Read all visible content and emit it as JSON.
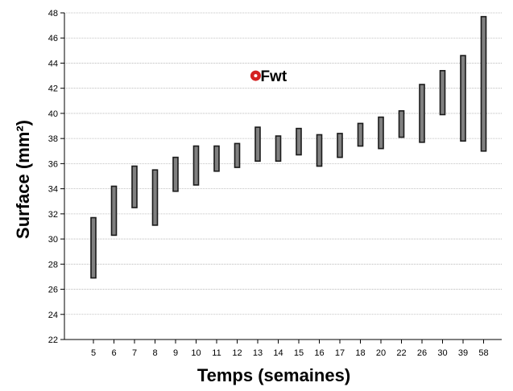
{
  "chart_data": {
    "type": "range-bar",
    "xlabel": "Temps (semaines)",
    "ylabel": "Surface (mm²)",
    "ylim": [
      22,
      48
    ],
    "yticks": [
      22,
      24,
      26,
      28,
      30,
      32,
      34,
      36,
      38,
      40,
      42,
      44,
      46,
      48
    ],
    "grid": true,
    "categories": [
      "5",
      "6",
      "7",
      "8",
      "9",
      "10",
      "11",
      "12",
      "13",
      "14",
      "15",
      "16",
      "17",
      "18",
      "20",
      "22",
      "26",
      "30",
      "39",
      "58"
    ],
    "ranges": [
      [
        26.9,
        31.7
      ],
      [
        30.3,
        34.2
      ],
      [
        32.5,
        35.8
      ],
      [
        31.1,
        35.5
      ],
      [
        33.8,
        36.5
      ],
      [
        34.3,
        37.4
      ],
      [
        35.4,
        37.4
      ],
      [
        35.7,
        37.6
      ],
      [
        36.2,
        38.9
      ],
      [
        36.2,
        38.2
      ],
      [
        36.7,
        38.8
      ],
      [
        35.8,
        38.3
      ],
      [
        36.5,
        38.4
      ],
      [
        37.4,
        39.2
      ],
      [
        37.2,
        39.7
      ],
      [
        38.1,
        40.2
      ],
      [
        37.7,
        42.3
      ],
      [
        39.9,
        43.4
      ],
      [
        37.8,
        44.6
      ],
      [
        37.0,
        47.7
      ]
    ],
    "bar_color": "#808080",
    "bar_edge_color": "#1a1a1a",
    "annotation": {
      "label": "Fwt",
      "x_category_index": 7.9,
      "y": 43.0,
      "color": "#d42020"
    }
  }
}
